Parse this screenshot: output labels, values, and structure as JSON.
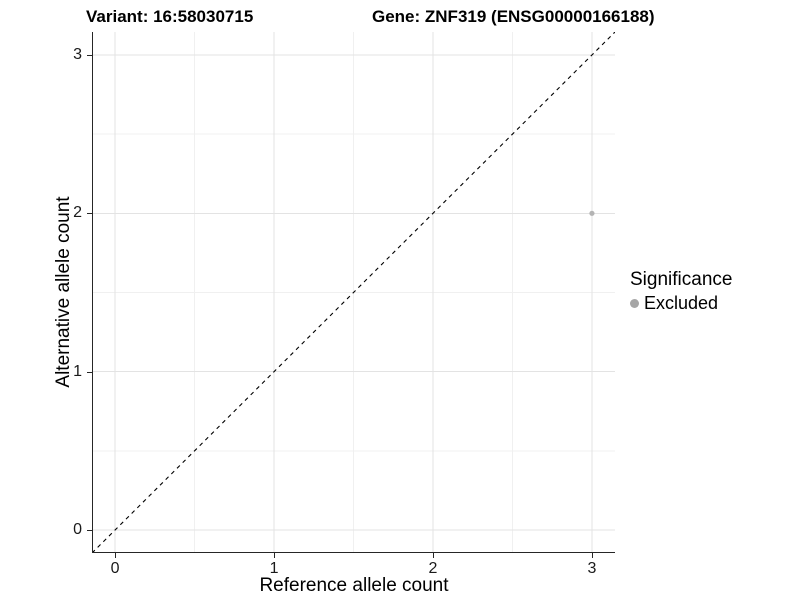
{
  "figure": {
    "title_left": "Variant: 16:58030715",
    "title_right": "Gene: ZNF319 (ENSG00000166188)"
  },
  "chart_data": {
    "type": "scatter",
    "title_left": "Variant: 16:58030715",
    "title_right": "Gene: ZNF319 (ENSG00000166188)",
    "xlabel": "Reference allele count",
    "ylabel": "Alternative allele count",
    "xlim": [
      -0.145,
      3.145
    ],
    "ylim": [
      -0.145,
      3.145
    ],
    "xticks": [
      0,
      1,
      2,
      3
    ],
    "yticks": [
      0,
      1,
      2,
      3
    ],
    "minor_ticks": [
      0.5,
      1.5,
      2.5
    ],
    "grid": "major+minor, white panel background",
    "series": [
      {
        "name": "Excluded",
        "color": "#b4b4b4",
        "points": [
          {
            "x": 3,
            "y": 2
          }
        ]
      }
    ],
    "reference_line": {
      "type": "identity y=x",
      "style": "dashed",
      "color": "#000000"
    },
    "legend": {
      "title": "Significance",
      "position": "right",
      "items": [
        {
          "label": "Excluded",
          "marker": "circle",
          "color": "#a6a6a6"
        }
      ]
    },
    "style_colors": {
      "grid_major": "#e3e3e3",
      "grid_minor": "#f0f0f0",
      "axis_line": "#262626",
      "tick_label": "#1a1a1a"
    }
  }
}
